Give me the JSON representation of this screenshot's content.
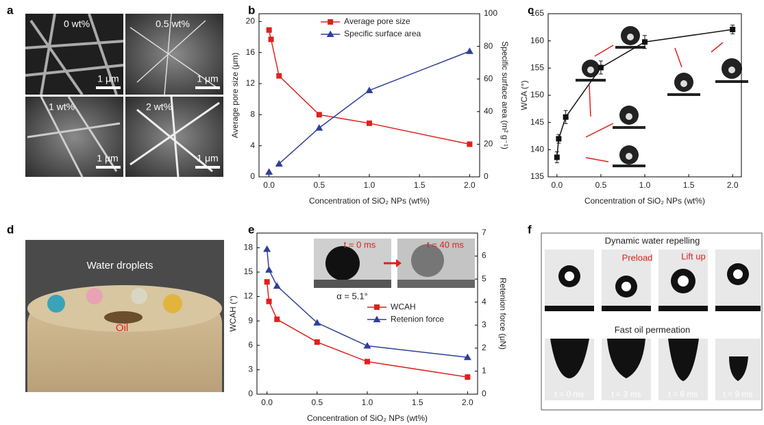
{
  "panel_labels": [
    "a",
    "b",
    "c",
    "d",
    "e",
    "f"
  ],
  "panel_a": {
    "labels": [
      "0 wt%",
      "0.5 wt%",
      "1 wt%",
      "2 wt%"
    ],
    "scale_bars": [
      "1 μm",
      "1 μm",
      "1 μm",
      "1 μm"
    ]
  },
  "panel_d": {
    "labels": [
      "Water droplets",
      "Oil"
    ]
  },
  "panel_e_inset": {
    "times": [
      "t = 0 ms",
      "t = 40 ms"
    ],
    "angle": "α = 5.1°"
  },
  "panel_f": {
    "top_title": "Dynamic water repelling",
    "top_labels": [
      "Preload",
      "Lift up"
    ],
    "bottom_title": "Fast oil permeation",
    "times": [
      "t = 0 ms",
      "t = 3 ms",
      "t = 6 ms",
      "t = 9 ms"
    ]
  },
  "chart_data": [
    {
      "type": "line",
      "xlabel": "Concentration of SiO₂ NPs (wt%)",
      "ylabel": "Average pore size (μm)",
      "y2label": "Specific surface area (m² g⁻¹)",
      "x": [
        0,
        0.02,
        0.1,
        0.5,
        1,
        2
      ],
      "xlim": [
        -0.1,
        2.1
      ],
      "xticks": [
        {
          "value": 0,
          "label": "0.0"
        },
        0.5,
        {
          "value": 1,
          "label": "1.0"
        },
        1.5,
        {
          "value": 2,
          "label": "2.0"
        }
      ],
      "ylim": [
        0,
        21
      ],
      "yticks": [
        0,
        4,
        8,
        12,
        16,
        20
      ],
      "y2lim": [
        0,
        100
      ],
      "y2ticks": [
        0,
        20,
        40,
        60,
        80,
        100
      ],
      "legend": "upper center",
      "series": [
        {
          "name": "Average pore size",
          "color": "#e0201e",
          "marker": "square",
          "values": [
            18.9,
            17.7,
            13.0,
            8.0,
            6.9,
            4.2
          ]
        },
        {
          "name": "Specific surface area",
          "color": "#2e3f99",
          "marker": "triangle",
          "axis": "y2",
          "values": [
            3,
            null,
            8,
            30,
            53,
            77
          ]
        }
      ]
    },
    {
      "type": "line",
      "xlabel": "Concentration of SiO₂ NPs (wt%)",
      "ylabel": "WCA (°)",
      "x": [
        0,
        0.02,
        0.1,
        0.5,
        1,
        2
      ],
      "xlim": [
        -0.1,
        2.1
      ],
      "xticks": [
        {
          "value": 0,
          "label": "0.0"
        },
        0.5,
        {
          "value": 1,
          "label": "1.0"
        },
        1.5,
        {
          "value": 2,
          "label": "2.0"
        }
      ],
      "ylim": [
        135,
        165
      ],
      "yticks": [
        135,
        140,
        145,
        150,
        155,
        160,
        165
      ],
      "series": [
        {
          "color": "#111111",
          "marker": "square",
          "values": [
            138.6,
            142.0,
            146.0,
            155.1,
            159.8,
            162.1
          ],
          "errors": [
            1.0,
            0.8,
            1.2,
            1.2,
            1.2,
            0.8
          ]
        }
      ]
    },
    {
      "type": "line",
      "xlabel": "Concentration of SiO₂ NPs (wt%)",
      "ylabel": "WCAH (°)",
      "y2label": "Retenion force (μN)",
      "x": [
        0,
        0.02,
        0.1,
        0.5,
        1,
        2
      ],
      "xlim": [
        -0.1,
        2.1
      ],
      "xticks": [
        {
          "value": 0,
          "label": "0.0"
        },
        0.5,
        {
          "value": 1,
          "label": "1.0"
        },
        1.5,
        {
          "value": 2,
          "label": "2.0"
        }
      ],
      "ylim": [
        0,
        19.8
      ],
      "yticks": [
        0,
        3,
        6,
        9,
        12,
        15,
        18
      ],
      "y2lim": [
        0,
        7
      ],
      "y2ticks": [
        0,
        1,
        2,
        3,
        4,
        5,
        6,
        7
      ],
      "legend": "center right",
      "series": [
        {
          "name": "WCAH",
          "color": "#e0201e",
          "marker": "square",
          "values": [
            13.8,
            11.4,
            9.2,
            6.4,
            4.0,
            2.1
          ]
        },
        {
          "name": "Retenion force",
          "color": "#2e3f99",
          "marker": "triangle",
          "axis": "y2",
          "values": [
            6.3,
            5.4,
            4.7,
            3.1,
            2.1,
            1.6
          ]
        }
      ]
    }
  ]
}
